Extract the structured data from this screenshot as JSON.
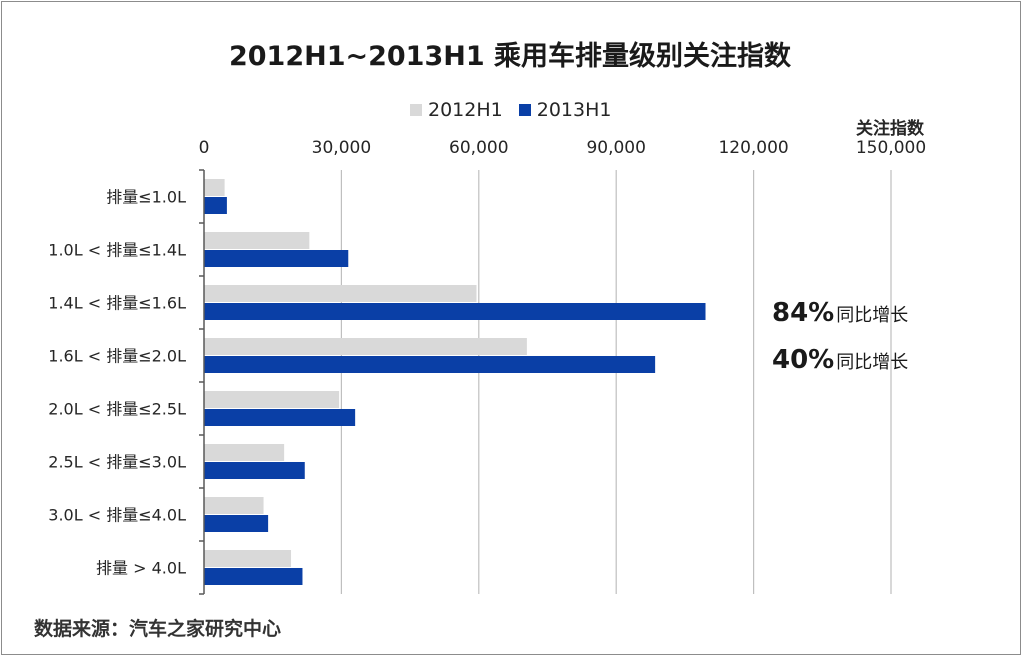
{
  "chart_data": {
    "type": "bar",
    "orientation": "horizontal",
    "title": "2012H1~2013H1 乘用车排量级别关注指数",
    "unit_label": "关注指数",
    "categories": [
      "排量≤1.0L",
      "1.0L < 排量≤1.4L",
      "1.4L < 排量≤1.6L",
      "1.6L < 排量≤2.0L",
      "2.0L < 排量≤2.5L",
      "2.5L < 排量≤3.0L",
      "3.0L < 排量≤4.0L",
      "排量 > 4.0L"
    ],
    "series": [
      {
        "name": "2012H1",
        "color": "#d9d9d9",
        "values": [
          4500,
          23000,
          59500,
          70500,
          29500,
          17500,
          13000,
          19000
        ]
      },
      {
        "name": "2013H1",
        "color": "#0a3fa6",
        "values": [
          5000,
          31500,
          109500,
          98500,
          33000,
          22000,
          14000,
          21500
        ]
      }
    ],
    "xlim": [
      0,
      150000
    ],
    "x_ticks": [
      "0",
      "30,000",
      "60,000",
      "90,000",
      "120,000",
      "150,000"
    ],
    "grid": true,
    "legend_position": "top",
    "annotations": [
      {
        "pct": "84%",
        "text": "同比增长"
      },
      {
        "pct": "40%",
        "text": "同比增长"
      }
    ]
  },
  "source": "数据来源：汽车之家研究中心"
}
